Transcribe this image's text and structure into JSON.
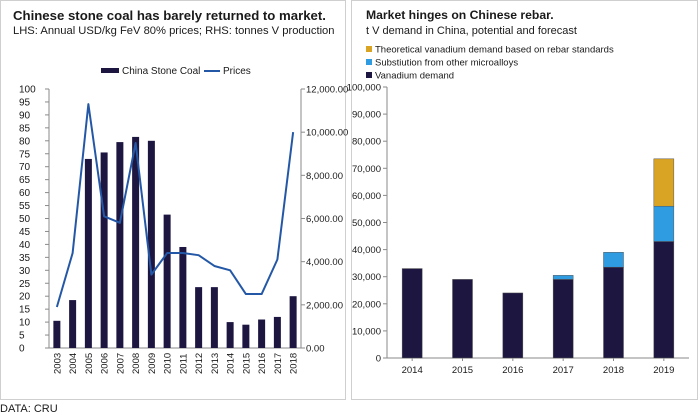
{
  "source": "DATA: CRU",
  "colors": {
    "navy": "#1c1640",
    "line_blue": "#2458a6",
    "light_blue": "#2f9be0",
    "gold": "#d9a423",
    "axis": "#8a8a8a"
  },
  "chart_data": [
    {
      "type": "bar",
      "title": "Chinese stone coal has barely returned to market.",
      "subtitle": "LHS: Annual USD/kg FeV 80% prices; RHS: tonnes V production",
      "categories": [
        "2003",
        "2004",
        "2005",
        "2006",
        "2007",
        "2008",
        "2009",
        "2010",
        "2011",
        "2012",
        "2013",
        "2014",
        "2015",
        "2016",
        "2017",
        "2018"
      ],
      "series": [
        {
          "name": "China Stone Coal",
          "type": "bar",
          "axis": "left",
          "color": "#1c1640",
          "values": [
            10.5,
            18.5,
            73,
            75.5,
            79.5,
            81.5,
            80,
            51.5,
            39,
            23.5,
            23.5,
            10,
            9,
            11,
            12,
            20
          ]
        },
        {
          "name": "Prices",
          "type": "line",
          "axis": "right",
          "color": "#2458a6",
          "values": [
            1900,
            4400,
            11300,
            6100,
            5800,
            9500,
            3400,
            4400,
            4400,
            4300,
            3800,
            3600,
            2500,
            2500,
            4100,
            10000
          ]
        }
      ],
      "y_left": {
        "min": 0,
        "max": 100,
        "ticks": [
          "0",
          "5",
          "10",
          "15",
          "20",
          "25",
          "30",
          "35",
          "40",
          "45",
          "50",
          "55",
          "60",
          "65",
          "70",
          "75",
          "80",
          "85",
          "90",
          "95",
          "100"
        ]
      },
      "y_right": {
        "min": 0,
        "max": 12000,
        "ticks": [
          "0.00",
          "2,000.00",
          "4,000.00",
          "6,000.00",
          "8,000.00",
          "10,000.00",
          "12,000.00"
        ]
      },
      "legend": "top"
    },
    {
      "type": "bar",
      "stacked": true,
      "title": "Market hinges on Chinese rebar.",
      "subtitle": "t V demand in China, potential and forecast",
      "categories": [
        "2014",
        "2015",
        "2016",
        "2017",
        "2018",
        "2019"
      ],
      "series": [
        {
          "name": "Vanadium demand",
          "color": "#1c1640",
          "values": [
            33000,
            29000,
            24000,
            29000,
            33500,
            43000
          ]
        },
        {
          "name": "Substiution from other microalloys",
          "color": "#2f9be0",
          "values": [
            0,
            0,
            0,
            1500,
            5500,
            13000
          ]
        },
        {
          "name": "Theoretical vanadium demand based on rebar standards",
          "color": "#d9a423",
          "values": [
            0,
            0,
            0,
            0,
            0,
            17500
          ]
        }
      ],
      "y": {
        "min": 0,
        "max": 100000,
        "ticks": [
          "0",
          "10,000",
          "20,000",
          "30,000",
          "40,000",
          "50,000",
          "60,000",
          "70,000",
          "80,000",
          "90,000",
          "100,000"
        ]
      },
      "legend": "top-left"
    }
  ]
}
